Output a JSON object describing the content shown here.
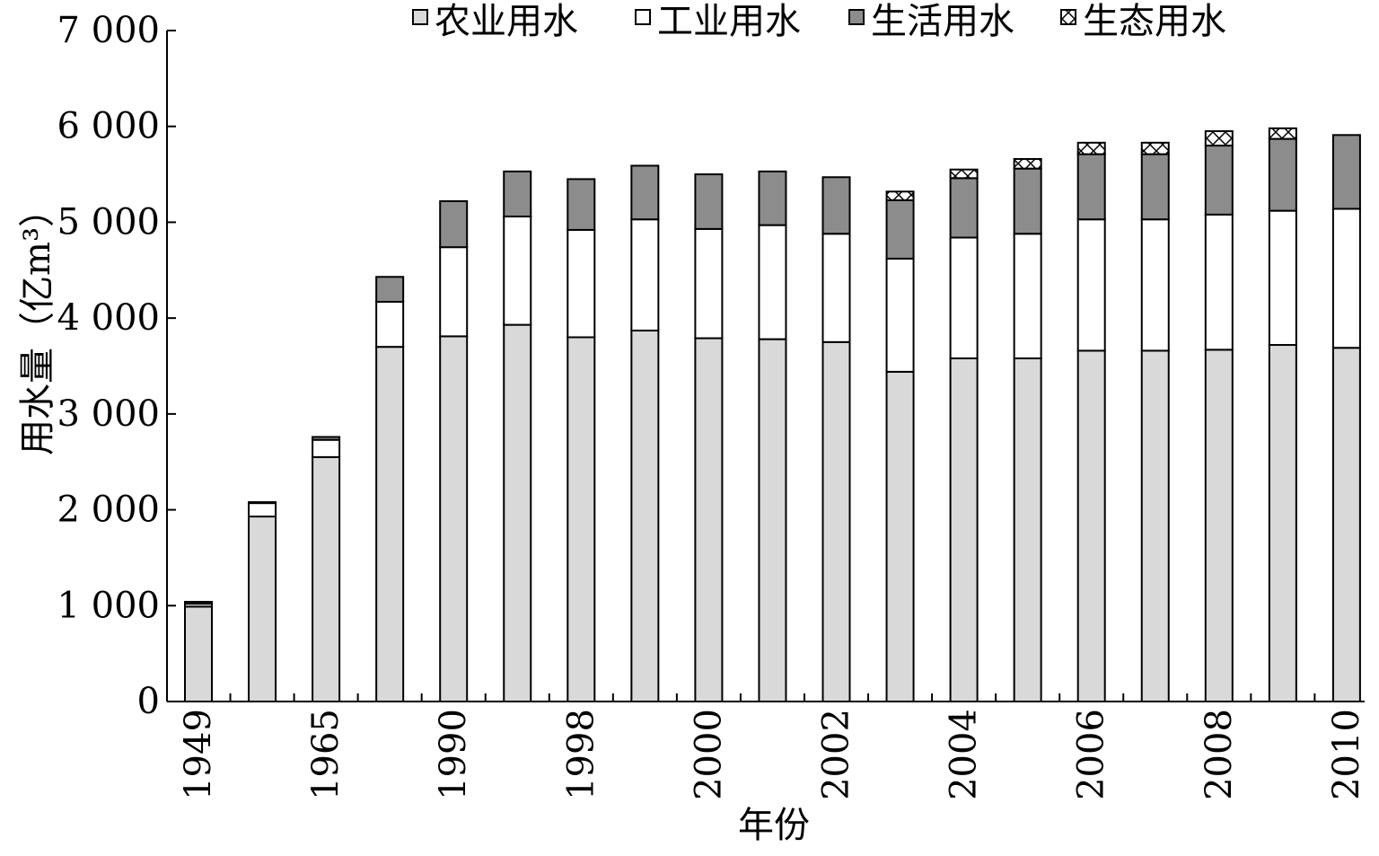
{
  "chart_data": {
    "type": "bar",
    "stacked": true,
    "ylabel": "用水量（亿m³）",
    "xlabel": "年份",
    "ylim": [
      0,
      7000
    ],
    "y_ticks": [
      0,
      1000,
      2000,
      3000,
      4000,
      5000,
      6000,
      7000
    ],
    "y_tick_labels": [
      "0",
      "1 000",
      "2 000",
      "3 000",
      "4 000",
      "5 000",
      "6 000",
      "7 000"
    ],
    "categories": [
      "1949",
      "",
      "1965",
      "",
      "1990",
      "",
      "1998",
      "",
      "2000",
      "",
      "2002",
      "",
      "2004",
      "",
      "2006",
      "",
      "2008",
      "",
      "2010"
    ],
    "legend_position": "top",
    "series": [
      {
        "name": "农业用水",
        "color": "#d9d9d9",
        "pattern": "solid",
        "values": [
          990,
          1930,
          2550,
          3700,
          3810,
          3930,
          3800,
          3870,
          3790,
          3780,
          3750,
          3440,
          3580,
          3580,
          3660,
          3660,
          3670,
          3720,
          3690
        ]
      },
      {
        "name": "工业用水",
        "color": "#ffffff",
        "pattern": "solid",
        "values": [
          30,
          140,
          180,
          470,
          930,
          1130,
          1120,
          1160,
          1140,
          1190,
          1130,
          1180,
          1260,
          1300,
          1370,
          1370,
          1410,
          1400,
          1450
        ]
      },
      {
        "name": "生活用水",
        "color": "#8c8c8c",
        "pattern": "solid",
        "values": [
          20,
          10,
          30,
          260,
          480,
          470,
          530,
          560,
          570,
          560,
          590,
          610,
          620,
          680,
          680,
          680,
          720,
          750,
          770
        ]
      },
      {
        "name": "生态用水",
        "color": "#ffffff",
        "pattern": "cross",
        "values": [
          0,
          0,
          0,
          0,
          0,
          0,
          0,
          0,
          0,
          0,
          0,
          90,
          90,
          100,
          120,
          120,
          150,
          110,
          0
        ]
      }
    ]
  }
}
